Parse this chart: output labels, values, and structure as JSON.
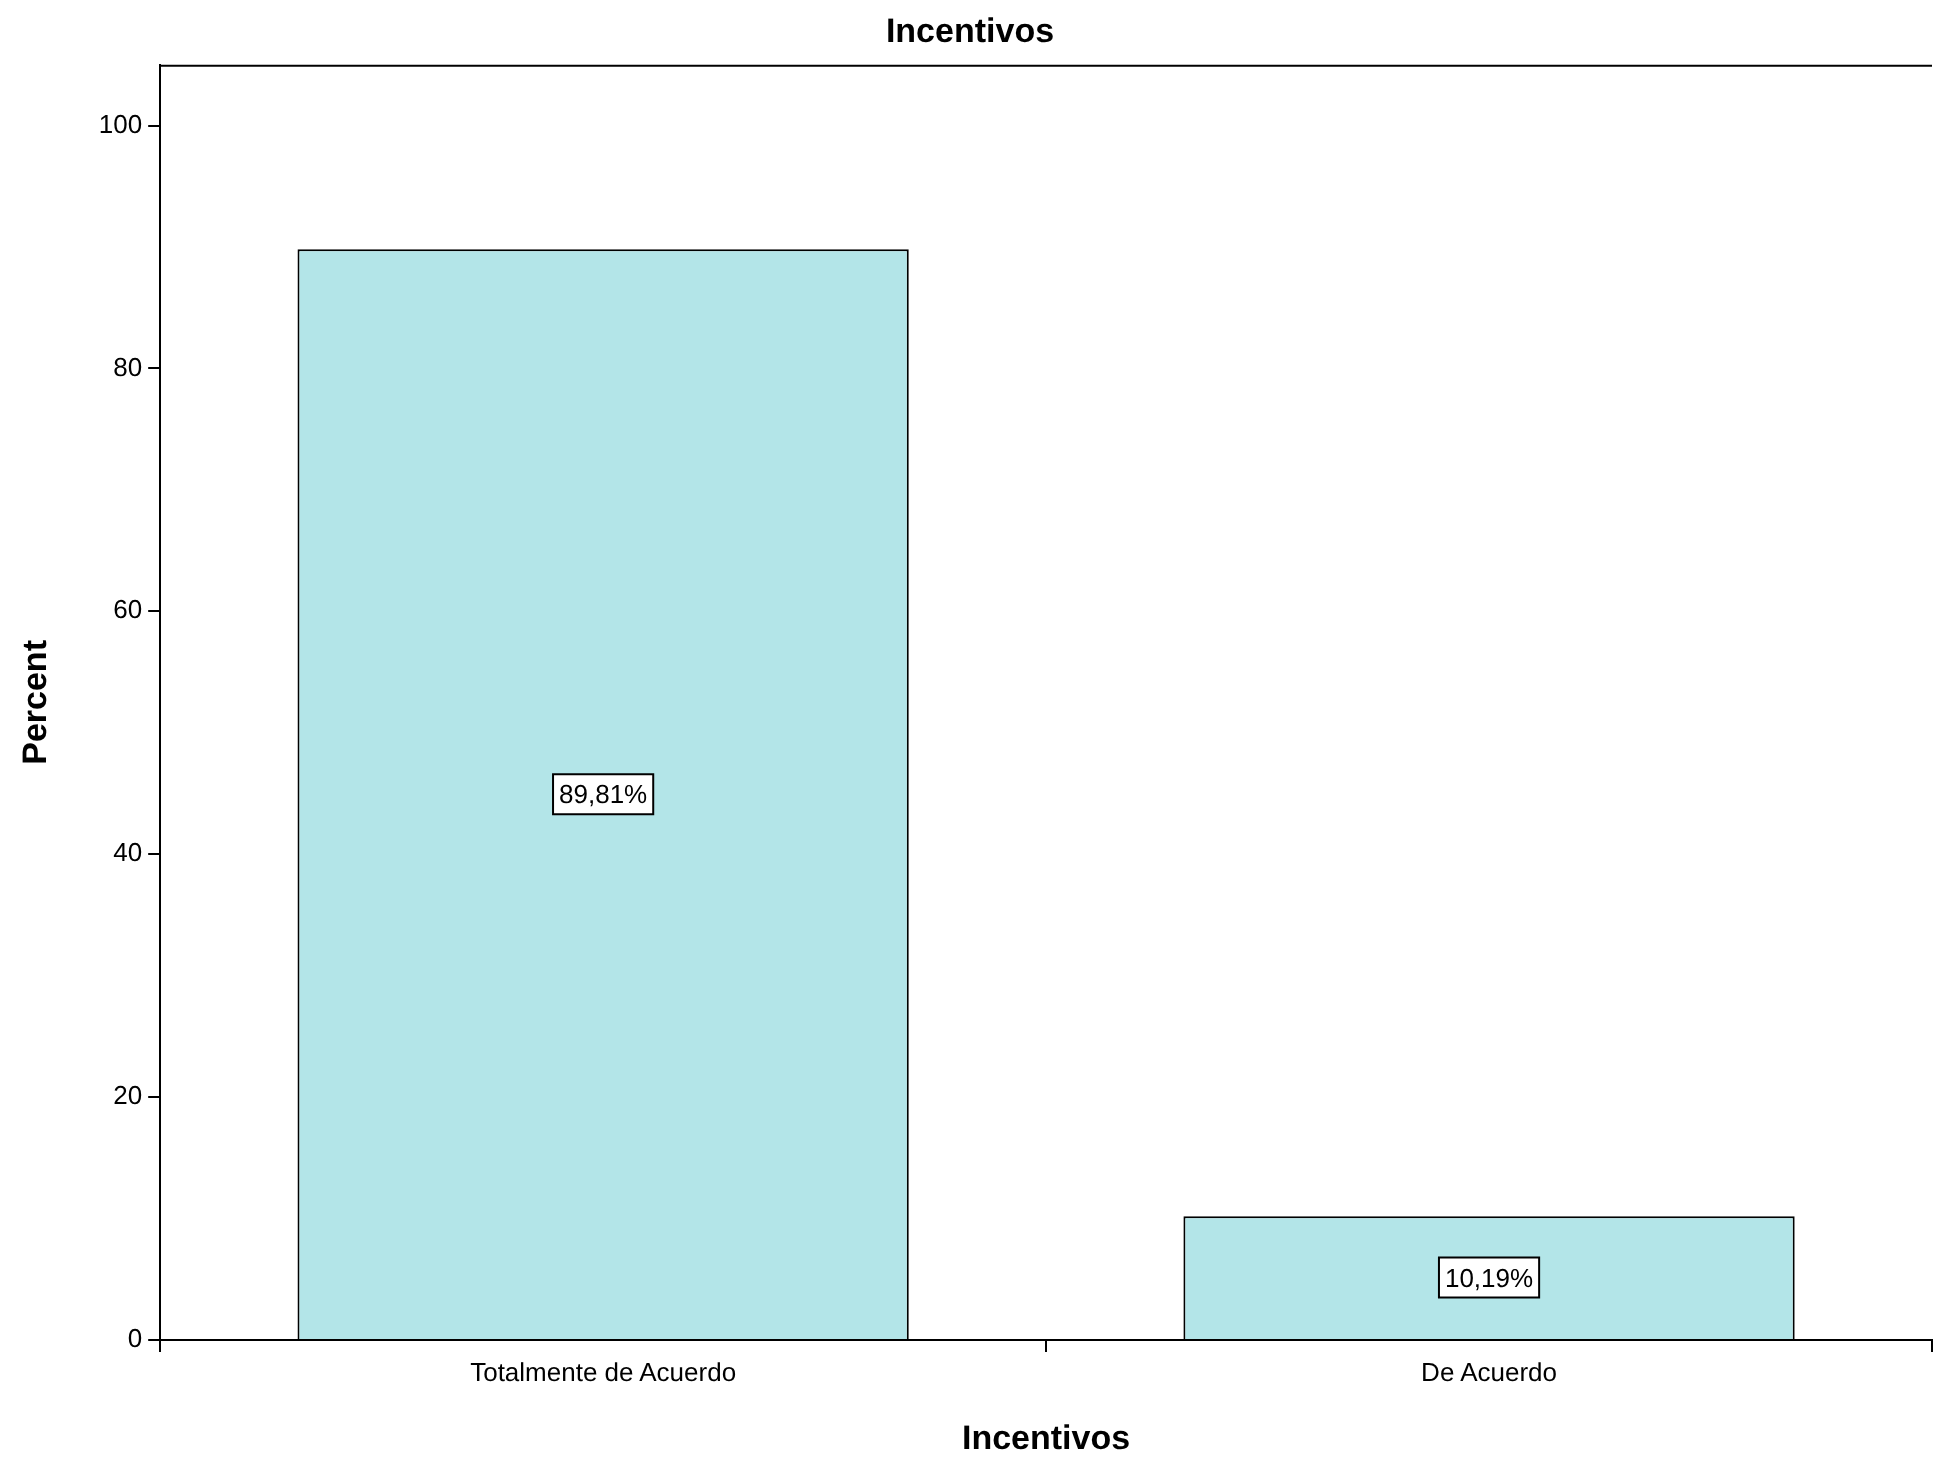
{
  "chart_data": {
    "type": "bar",
    "title": "Incentivos",
    "xlabel": "Incentivos",
    "ylabel": "Percent",
    "categories": [
      "Totalmente de Acuerdo",
      "De Acuerdo"
    ],
    "values": [
      89.81,
      10.19
    ],
    "color": "#b3e5e8",
    "value_labels": [
      "89,81%",
      "10,19%"
    ],
    "ylim": [
      0,
      105
    ],
    "yticks": [
      0,
      20,
      40,
      60,
      80,
      100
    ],
    "grid": false,
    "legend": false
  }
}
